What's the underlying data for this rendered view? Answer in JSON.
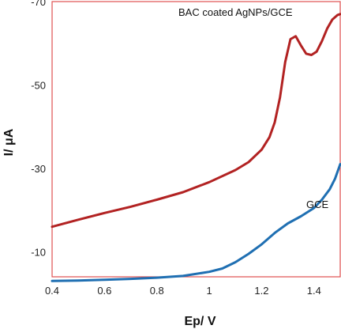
{
  "chart_data": {
    "type": "line",
    "xlabel": "Ep/ V",
    "ylabel": "I/ μA",
    "xlim": [
      0.4,
      1.5
    ],
    "ylim": [
      -4,
      -70
    ],
    "xticks": [
      0.4,
      0.6,
      0.8,
      1.0,
      1.2,
      1.4
    ],
    "xtick_labels": [
      "0.4",
      "0.6",
      "0.8",
      "1",
      "1.2",
      "1.4"
    ],
    "yticks": [
      -70,
      -50,
      -30,
      -10
    ],
    "ytick_labels": [
      "-70",
      "-50",
      "-30",
      "-10"
    ],
    "grid": false,
    "frame_color": "#e05050",
    "series": [
      {
        "name": "BAC coated AgNPs/GCE",
        "color": "#b22222",
        "x": [
          0.4,
          0.5,
          0.6,
          0.7,
          0.8,
          0.9,
          1.0,
          1.1,
          1.15,
          1.2,
          1.23,
          1.25,
          1.27,
          1.29,
          1.31,
          1.33,
          1.35,
          1.37,
          1.39,
          1.41,
          1.43,
          1.45,
          1.47,
          1.49,
          1.5
        ],
        "y": [
          -16,
          -17.7,
          -19.3,
          -20.8,
          -22.5,
          -24.3,
          -26.7,
          -29.6,
          -31.5,
          -34.5,
          -37.5,
          -41,
          -47,
          -55.5,
          -61,
          -61.7,
          -59.5,
          -57.5,
          -57.2,
          -58,
          -60.5,
          -63.5,
          -65.7,
          -66.8,
          -67
        ]
      },
      {
        "name": "GCE",
        "color": "#1f6fb2",
        "x": [
          0.4,
          0.5,
          0.6,
          0.7,
          0.8,
          0.9,
          1.0,
          1.05,
          1.1,
          1.15,
          1.2,
          1.25,
          1.3,
          1.35,
          1.4,
          1.43,
          1.46,
          1.48,
          1.5
        ],
        "y": [
          -3,
          -3.1,
          -3.3,
          -3.5,
          -3.8,
          -4.2,
          -5.2,
          -6,
          -7.5,
          -9.5,
          -11.8,
          -14.5,
          -16.8,
          -18.5,
          -20.5,
          -22.5,
          -25,
          -27.5,
          -31
        ]
      }
    ],
    "annotations": [
      {
        "text": "BAC coated AgNPs/GCE",
        "series": 0
      },
      {
        "text": "GCE",
        "series": 1
      }
    ]
  }
}
